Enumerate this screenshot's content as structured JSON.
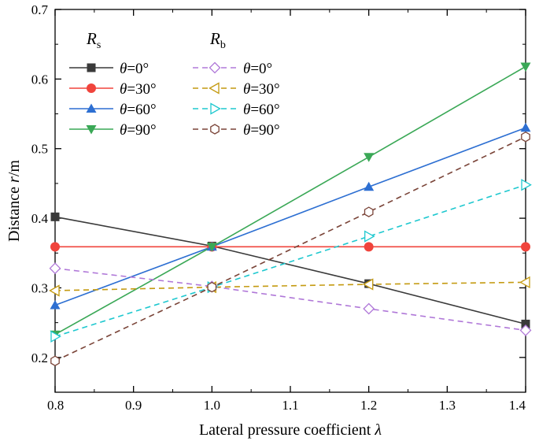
{
  "chart_data": {
    "type": "line",
    "xlabel": "Lateral pressure coefficient",
    "xlabel_symbol": "λ",
    "ylabel": "Distance",
    "ylabel_symbol": "r",
    "ylabel_unit": "/m",
    "xlim": [
      0.8,
      1.4
    ],
    "ylim": [
      0.15,
      0.7
    ],
    "xticks": [
      0.8,
      0.9,
      1.0,
      1.1,
      1.2,
      1.3,
      1.4
    ],
    "yticks": [
      0.2,
      0.3,
      0.4,
      0.5,
      0.6,
      0.7
    ],
    "xtick_labels": [
      "0.8",
      "0.9",
      "1.0",
      "1.1",
      "1.2",
      "1.3",
      "1.4"
    ],
    "ytick_labels": [
      "0.2",
      "0.3",
      "0.4",
      "0.5",
      "0.6",
      "0.7"
    ],
    "grid": false,
    "legend": {
      "placement": "top-left",
      "group_headers": [
        {
          "symbol": "R",
          "sub": "s"
        },
        {
          "symbol": "R",
          "sub": "b"
        }
      ]
    },
    "x": [
      0.8,
      1.0,
      1.2,
      1.4
    ],
    "series": [
      {
        "name": "θ=0°",
        "label_prefix": "θ",
        "label_suffix": "=0°",
        "group": "Rs",
        "color": "#3a3a3a",
        "line": "solid",
        "marker": "square",
        "values": [
          0.402,
          0.36,
          0.306,
          0.248
        ]
      },
      {
        "name": "θ=30°",
        "label_prefix": "θ",
        "label_suffix": "=30°",
        "group": "Rs",
        "color": "#f0443c",
        "line": "solid",
        "marker": "circle",
        "values": [
          0.359,
          0.359,
          0.359,
          0.359
        ]
      },
      {
        "name": "θ=60°",
        "label_prefix": "θ",
        "label_suffix": "=60°",
        "group": "Rs",
        "color": "#2d6fd2",
        "line": "solid",
        "marker": "triangle-up",
        "values": [
          0.275,
          0.359,
          0.445,
          0.53
        ]
      },
      {
        "name": "θ=90°",
        "label_prefix": "θ",
        "label_suffix": "=90°",
        "group": "Rs",
        "color": "#3aa856",
        "line": "solid",
        "marker": "triangle-down",
        "values": [
          0.233,
          0.359,
          0.488,
          0.618
        ]
      },
      {
        "name": "θ=0°",
        "label_prefix": "θ",
        "label_suffix": "=0°",
        "group": "Rb",
        "color": "#b078d8",
        "line": "dashed",
        "marker": "diamond-open",
        "values": [
          0.328,
          0.302,
          0.27,
          0.239
        ]
      },
      {
        "name": "θ=30°",
        "label_prefix": "θ",
        "label_suffix": "=30°",
        "group": "Rb",
        "color": "#c49a10",
        "line": "dashed",
        "marker": "triangle-left-open",
        "values": [
          0.296,
          0.301,
          0.305,
          0.308
        ]
      },
      {
        "name": "θ=60°",
        "label_prefix": "θ",
        "label_suffix": "=60°",
        "group": "Rb",
        "color": "#1ec8cf",
        "line": "dashed",
        "marker": "triangle-right-open",
        "values": [
          0.23,
          0.301,
          0.374,
          0.448
        ]
      },
      {
        "name": "θ=90°",
        "label_prefix": "θ",
        "label_suffix": "=90°",
        "group": "Rb",
        "color": "#7a4438",
        "line": "dashed",
        "marker": "hexagon-open",
        "values": [
          0.195,
          0.301,
          0.409,
          0.517
        ]
      }
    ]
  }
}
